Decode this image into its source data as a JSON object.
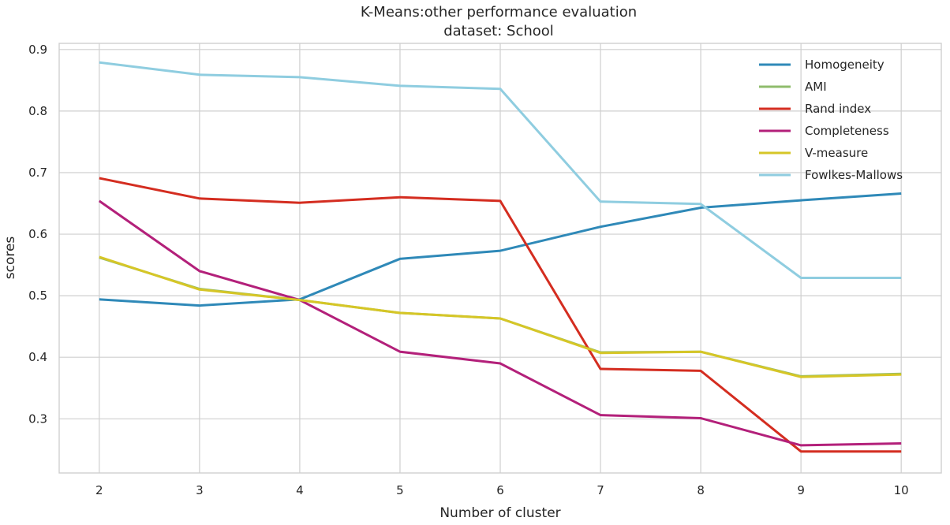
{
  "chart_data": {
    "type": "line",
    "title": "K-Means:other performance evaluation",
    "subtitle": "dataset: School",
    "xlabel": "Number of cluster",
    "ylabel": "scores",
    "x": [
      2,
      3,
      4,
      5,
      6,
      7,
      8,
      9,
      10
    ],
    "x_ticks": [
      "2",
      "3",
      "4",
      "5",
      "6",
      "7",
      "8",
      "9",
      "10"
    ],
    "y_ticks": [
      "0.3",
      "0.4",
      "0.5",
      "0.6",
      "0.7",
      "0.8",
      "0.9"
    ],
    "xlim": [
      1.6,
      10.4
    ],
    "ylim": [
      0.212,
      0.91
    ],
    "grid": true,
    "legend_position": "top-right",
    "series": [
      {
        "name": "Homogeneity",
        "color": "#2f89b8",
        "values": [
          0.494,
          0.484,
          0.494,
          0.56,
          0.573,
          0.612,
          0.643,
          0.655,
          0.666
        ]
      },
      {
        "name": "AMI",
        "color": "#8fbc6c",
        "values": [
          0.562,
          0.511,
          0.493,
          0.472,
          0.463,
          0.408,
          0.409,
          0.369,
          0.373
        ]
      },
      {
        "name": "Rand index",
        "color": "#d42d20",
        "values": [
          0.691,
          0.658,
          0.651,
          0.66,
          0.654,
          0.381,
          0.378,
          0.247,
          0.247
        ]
      },
      {
        "name": "Completeness",
        "color": "#b3207a",
        "values": [
          0.654,
          0.54,
          0.493,
          0.409,
          0.39,
          0.306,
          0.301,
          0.257,
          0.26
        ]
      },
      {
        "name": "V-measure",
        "color": "#d6c627",
        "values": [
          0.563,
          0.51,
          0.493,
          0.472,
          0.463,
          0.407,
          0.409,
          0.368,
          0.372
        ]
      },
      {
        "name": "Fowlkes-Mallows",
        "color": "#8fcde0",
        "values": [
          0.879,
          0.859,
          0.855,
          0.841,
          0.836,
          0.653,
          0.649,
          0.529,
          0.529
        ]
      }
    ]
  }
}
